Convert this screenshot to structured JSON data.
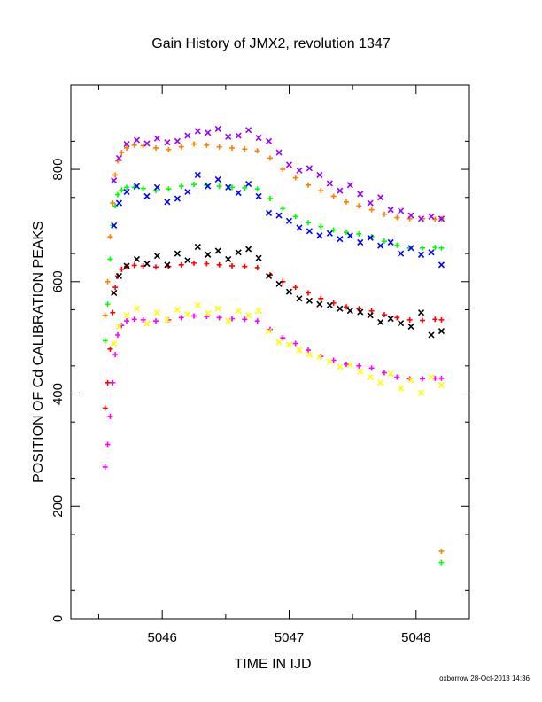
{
  "chart_data": {
    "type": "scatter",
    "title": "Gain History of JMX2, revolution 1347",
    "xlabel": "TIME IN IJD",
    "ylabel": "POSITION OF Cd CALIBRATION PEAKS",
    "xlim": [
      5045.28,
      5048.42
    ],
    "ylim": [
      0,
      950
    ],
    "xticks": [
      5046,
      5047,
      5048
    ],
    "xtick_labels": [
      "5046",
      "5047",
      "5048"
    ],
    "yticks": [
      0,
      200,
      400,
      600,
      800
    ],
    "ytick_labels": [
      "0",
      "200",
      "400",
      "600",
      "800"
    ],
    "grid": false,
    "legend": "none",
    "footer": "oxborrow 28-Oct-2013 14:36",
    "series": [
      {
        "color": "#ff8000",
        "marker": "+",
        "x": [
          5045.55,
          5045.57,
          5045.59,
          5045.61,
          5045.63,
          5045.65,
          5045.68,
          5045.72,
          5045.78,
          5045.85,
          5045.95,
          5046.05,
          5046.15,
          5046.25,
          5046.35,
          5046.45,
          5046.55,
          5046.65,
          5046.75,
          5046.85,
          5046.95,
          5047.05,
          5047.15,
          5047.25,
          5047.35,
          5047.45,
          5047.55,
          5047.65,
          5047.75,
          5047.85,
          5047.95,
          5048.05,
          5048.15,
          5048.2
        ],
        "y": [
          540,
          600,
          680,
          740,
          790,
          815,
          830,
          838,
          843,
          842,
          838,
          835,
          840,
          845,
          843,
          840,
          838,
          836,
          833,
          820,
          800,
          785,
          772,
          762,
          752,
          742,
          735,
          728,
          720,
          714,
          712,
          712,
          711,
          712
        ]
      },
      {
        "color": "#00ff00",
        "marker": "+",
        "x": [
          5045.55,
          5045.57,
          5045.59,
          5045.61,
          5045.63,
          5045.65,
          5045.68,
          5045.72,
          5045.78,
          5045.85,
          5045.95,
          5046.05,
          5046.15,
          5046.25,
          5046.35,
          5046.45,
          5046.55,
          5046.65,
          5046.75,
          5046.85,
          5046.95,
          5047.05,
          5047.15,
          5047.25,
          5047.35,
          5047.45,
          5047.55,
          5047.65,
          5047.75,
          5047.85,
          5047.95,
          5048.05,
          5048.15,
          5048.2
        ],
        "y": [
          495,
          560,
          640,
          700,
          735,
          755,
          763,
          768,
          768,
          766,
          762,
          765,
          770,
          773,
          772,
          770,
          768,
          767,
          765,
          748,
          730,
          716,
          705,
          698,
          692,
          688,
          685,
          680,
          672,
          665,
          660,
          660,
          661,
          660
        ]
      },
      {
        "color": "#ff0000",
        "marker": "+",
        "x": [
          5045.55,
          5045.57,
          5045.59,
          5045.61,
          5045.63,
          5045.65,
          5045.68,
          5045.72,
          5045.78,
          5045.85,
          5045.95,
          5046.05,
          5046.15,
          5046.25,
          5046.35,
          5046.45,
          5046.55,
          5046.65,
          5046.75,
          5046.85,
          5046.95,
          5047.05,
          5047.15,
          5047.25,
          5047.35,
          5047.45,
          5047.55,
          5047.65,
          5047.75,
          5047.85,
          5047.95,
          5048.05,
          5048.15,
          5048.2
        ],
        "y": [
          375,
          420,
          480,
          545,
          590,
          610,
          622,
          627,
          629,
          628,
          626,
          627,
          630,
          633,
          632,
          630,
          628,
          627,
          625,
          612,
          600,
          590,
          580,
          570,
          562,
          555,
          552,
          548,
          541,
          536,
          532,
          531,
          533,
          532
        ]
      },
      {
        "color": "#ff00ff",
        "marker": "+",
        "x": [
          5045.55,
          5045.57,
          5045.59,
          5045.61,
          5045.63,
          5045.65,
          5045.68,
          5045.72,
          5045.78,
          5045.85,
          5045.95,
          5046.05,
          5046.15,
          5046.25,
          5046.35,
          5046.45,
          5046.55,
          5046.65,
          5046.75,
          5046.85,
          5046.95,
          5047.05,
          5047.15,
          5047.25,
          5047.35,
          5047.45,
          5047.55,
          5047.65,
          5047.75,
          5047.85,
          5047.95,
          5048.05,
          5048.15,
          5048.2
        ],
        "y": [
          270,
          310,
          360,
          420,
          470,
          505,
          522,
          530,
          533,
          532,
          530,
          532,
          536,
          539,
          538,
          536,
          534,
          533,
          530,
          515,
          500,
          490,
          478,
          467,
          460,
          453,
          450,
          446,
          438,
          430,
          427,
          427,
          428,
          428
        ]
      },
      {
        "color": "#9900ff",
        "marker": "x",
        "x": [
          5045.62,
          5045.66,
          5045.72,
          5045.8,
          5045.88,
          5045.96,
          5046.04,
          5046.12,
          5046.2,
          5046.28,
          5046.36,
          5046.44,
          5046.52,
          5046.6,
          5046.68,
          5046.76,
          5046.84,
          5046.92,
          5047.0,
          5047.08,
          5047.16,
          5047.24,
          5047.32,
          5047.4,
          5047.48,
          5047.56,
          5047.64,
          5047.72,
          5047.8,
          5047.88,
          5047.96,
          5048.04,
          5048.12,
          5048.2
        ],
        "y": [
          780,
          820,
          845,
          852,
          846,
          855,
          848,
          850,
          860,
          868,
          865,
          872,
          858,
          860,
          870,
          856,
          850,
          830,
          808,
          798,
          802,
          790,
          775,
          762,
          772,
          756,
          740,
          750,
          728,
          726,
          718,
          712,
          716,
          712
        ]
      },
      {
        "color": "#0000ff",
        "marker": "x",
        "x": [
          5045.62,
          5045.66,
          5045.72,
          5045.8,
          5045.88,
          5045.96,
          5046.04,
          5046.12,
          5046.2,
          5046.28,
          5046.36,
          5046.44,
          5046.52,
          5046.6,
          5046.68,
          5046.76,
          5046.84,
          5046.92,
          5047.0,
          5047.08,
          5047.16,
          5047.24,
          5047.32,
          5047.4,
          5047.48,
          5047.56,
          5047.64,
          5047.72,
          5047.8,
          5047.88,
          5047.96,
          5048.04,
          5048.12,
          5048.2
        ],
        "y": [
          700,
          740,
          760,
          770,
          752,
          768,
          742,
          748,
          760,
          790,
          770,
          782,
          768,
          758,
          774,
          752,
          722,
          718,
          708,
          696,
          690,
          682,
          686,
          676,
          682,
          670,
          678,
          664,
          670,
          650,
          660,
          648,
          652,
          630
        ]
      },
      {
        "color": "#000000",
        "marker": "x",
        "x": [
          5045.62,
          5045.66,
          5045.72,
          5045.8,
          5045.88,
          5045.96,
          5046.04,
          5046.12,
          5046.2,
          5046.28,
          5046.36,
          5046.44,
          5046.52,
          5046.6,
          5046.68,
          5046.76,
          5046.84,
          5046.92,
          5047.0,
          5047.08,
          5047.16,
          5047.24,
          5047.32,
          5047.4,
          5047.48,
          5047.56,
          5047.64,
          5047.72,
          5047.8,
          5047.88,
          5047.96,
          5048.04,
          5048.12,
          5048.2
        ],
        "y": [
          580,
          610,
          628,
          640,
          632,
          646,
          630,
          650,
          638,
          662,
          648,
          655,
          640,
          652,
          658,
          642,
          610,
          596,
          582,
          570,
          566,
          560,
          558,
          552,
          548,
          546,
          540,
          528,
          534,
          526,
          520,
          545,
          505,
          512
        ]
      },
      {
        "color": "#ffff00",
        "marker": "x",
        "x": [
          5045.62,
          5045.66,
          5045.72,
          5045.8,
          5045.88,
          5045.96,
          5046.04,
          5046.12,
          5046.2,
          5046.28,
          5046.36,
          5046.44,
          5046.52,
          5046.6,
          5046.68,
          5046.76,
          5046.84,
          5046.92,
          5047.0,
          5047.08,
          5047.16,
          5047.24,
          5047.32,
          5047.4,
          5047.48,
          5047.56,
          5047.64,
          5047.72,
          5047.8,
          5047.88,
          5047.96,
          5048.04,
          5048.12,
          5048.2
        ],
        "y": [
          490,
          520,
          540,
          552,
          525,
          545,
          532,
          550,
          542,
          558,
          544,
          552,
          530,
          548,
          540,
          548,
          512,
          492,
          488,
          478,
          470,
          466,
          458,
          448,
          452,
          440,
          430,
          420,
          436,
          410,
          425,
          402,
          430,
          416
        ]
      },
      {
        "color": "#ff8000",
        "marker": "+",
        "x": [
          5048.2
        ],
        "y": [
          120
        ]
      },
      {
        "color": "#00ff00",
        "marker": "+",
        "x": [
          5048.2
        ],
        "y": [
          100
        ]
      }
    ]
  }
}
